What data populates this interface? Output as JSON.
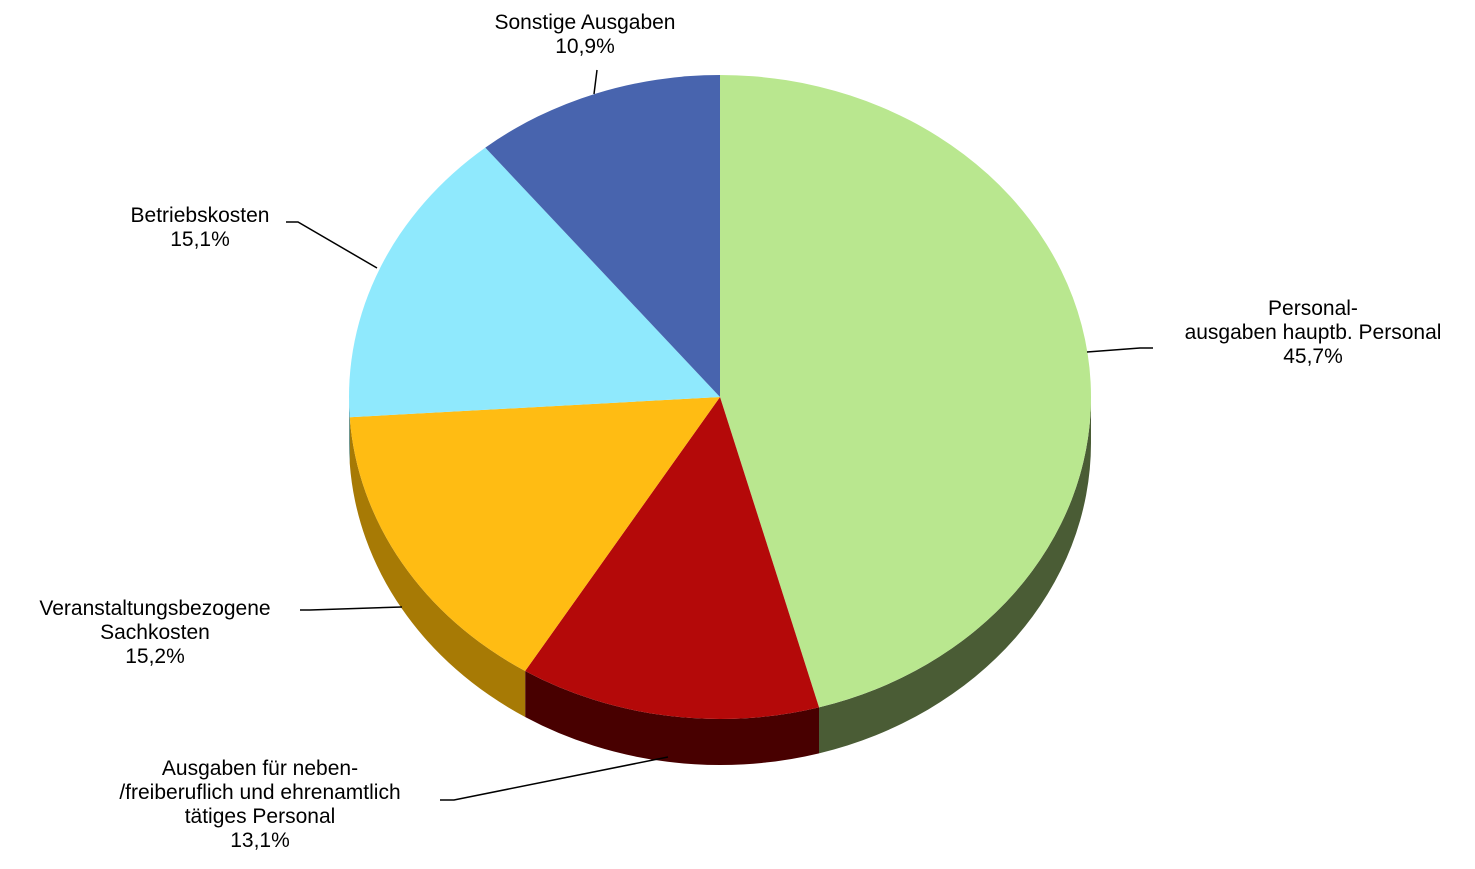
{
  "chart_data": {
    "type": "pie",
    "title": "",
    "three_d": true,
    "slices": [
      {
        "name_lines": [
          "Personal-",
          "ausgaben hauptb. Personal"
        ],
        "value": 45.7,
        "value_label": "45,7%",
        "color": "#b9e78f",
        "side_color": "#4a5c35"
      },
      {
        "name_lines": [
          "Ausgaben für neben-",
          "/freiberuflich und ehrenamtlich",
          "tätiges Personal"
        ],
        "value": 13.1,
        "value_label": "13,1%",
        "color": "#b40909",
        "side_color": "#480000"
      },
      {
        "name_lines": [
          "Veranstaltungsbezogene",
          "Sachkosten"
        ],
        "value": 15.2,
        "value_label": "15,2%",
        "color": "#ffbc13",
        "side_color": "#a77a05"
      },
      {
        "name_lines": [
          "Betriebskosten"
        ],
        "value": 15.1,
        "value_label": "15,1%",
        "color": "#8fe9fd",
        "side_color": "#4a8a98"
      },
      {
        "name_lines": [
          "Sonstige Ausgaben"
        ],
        "value": 10.9,
        "value_label": "10,9%",
        "color": "#4864ae",
        "side_color": "#243060"
      }
    ]
  }
}
